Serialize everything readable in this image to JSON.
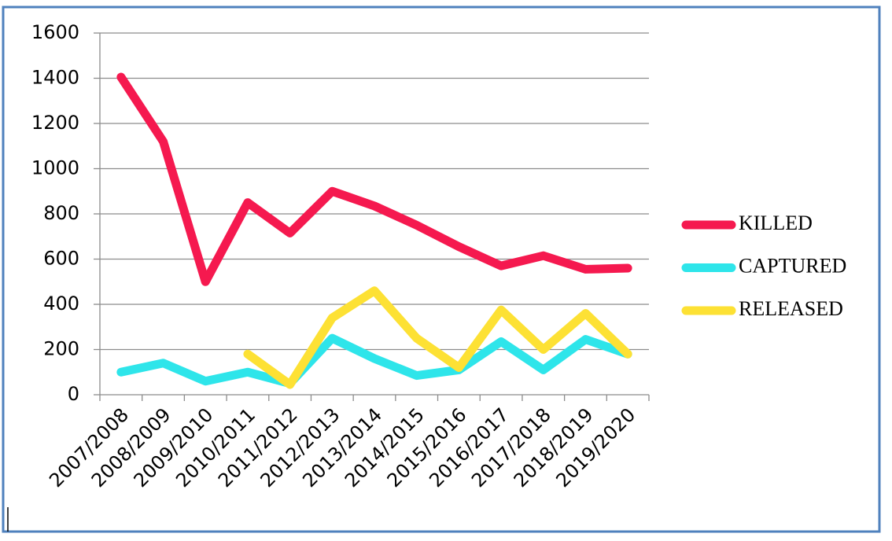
{
  "chart_data": {
    "type": "line",
    "categories": [
      "2007/2008",
      "2008/2009",
      "2009/2010",
      "2010/2011",
      "2011/2012",
      "2012/2013",
      "2013/2014",
      "2014/2015",
      "2015/2016",
      "2016/2017",
      "2017/2018",
      "2018/2019",
      "2019/2020"
    ],
    "series": [
      {
        "name": "KILLED",
        "color": "#f5194f",
        "values": [
          1405,
          1120,
          500,
          850,
          715,
          900,
          835,
          750,
          655,
          570,
          615,
          555,
          560
        ]
      },
      {
        "name": "CAPTURED",
        "color": "#2ee5ea",
        "values": [
          100,
          140,
          60,
          100,
          50,
          250,
          160,
          85,
          110,
          235,
          110,
          245,
          180
        ]
      },
      {
        "name": "RELEASED",
        "color": "#fde134",
        "values": [
          null,
          null,
          null,
          180,
          45,
          340,
          460,
          250,
          120,
          375,
          200,
          360,
          180
        ]
      }
    ],
    "ylim": [
      0,
      1600
    ],
    "yticks": [
      0,
      200,
      400,
      600,
      800,
      1000,
      1200,
      1400,
      1600
    ],
    "grid": true
  }
}
